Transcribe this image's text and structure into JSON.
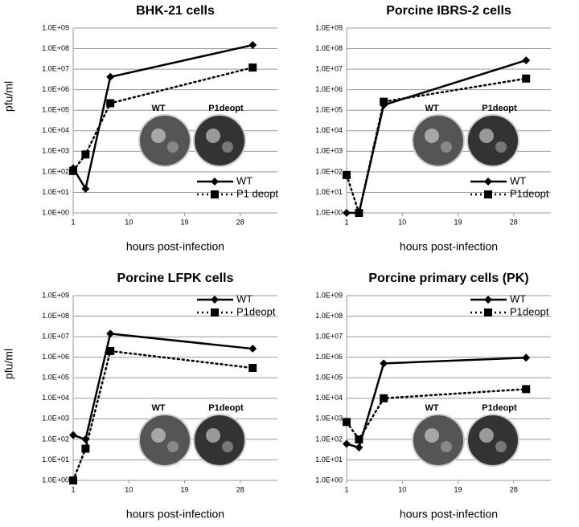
{
  "chart_data": [
    {
      "type": "line",
      "title": "BHK-21 cells",
      "ylabel": "pfu/ml",
      "xlabel": "hours post-infection",
      "log_y": true,
      "legend": "lower right",
      "inset_labels": [
        "WT",
        "P1deopt"
      ],
      "xlim": [
        1,
        34
      ],
      "xticks": [
        1,
        10,
        19,
        28
      ],
      "ylim": [
        1,
        1000000000
      ],
      "yticks": [
        {
          "value": 1,
          "label": "1.0E+00"
        },
        {
          "value": 10,
          "label": "1.0E+01"
        },
        {
          "value": 100,
          "label": "1.0E+02"
        },
        {
          "value": 1000,
          "label": "1.0E+03"
        },
        {
          "value": 10000,
          "label": "1.0E+04"
        },
        {
          "value": 100000,
          "label": "1.0E+05"
        },
        {
          "value": 1000000,
          "label": "1.0E+06"
        },
        {
          "value": 10000000,
          "label": "1.0E+07"
        },
        {
          "value": 100000000,
          "label": "1.0E+08"
        },
        {
          "value": 1000000000,
          "label": "1.0E+09"
        }
      ],
      "x": [
        1,
        3,
        7,
        30
      ],
      "series": [
        {
          "name": "WT",
          "color": "#000000",
          "dash": false,
          "marker": "diamond",
          "values": [
            150,
            15,
            4200000,
            150000000
          ]
        },
        {
          "name": "P1 deopt",
          "color": "#000000",
          "dash": true,
          "marker": "square",
          "values": [
            110,
            700,
            220000,
            12000000
          ]
        }
      ]
    },
    {
      "type": "line",
      "title": "Porcine IBRS-2 cells",
      "xlabel": "hours post-infection",
      "log_y": true,
      "legend": "lower right",
      "inset_labels": [
        "WT",
        "P1deopt"
      ],
      "xlim": [
        1,
        34
      ],
      "xticks": [
        1,
        10,
        19,
        28
      ],
      "ylim": [
        1,
        1000000000
      ],
      "yticks": [
        {
          "value": 1,
          "label": "1.0E+00"
        },
        {
          "value": 10,
          "label": "1.0E+01"
        },
        {
          "value": 100,
          "label": "1.0E+02"
        },
        {
          "value": 1000,
          "label": "1.0E+03"
        },
        {
          "value": 10000,
          "label": "1.0E+04"
        },
        {
          "value": 100000,
          "label": "1.0E+05"
        },
        {
          "value": 1000000,
          "label": "1.0E+06"
        },
        {
          "value": 10000000,
          "label": "1.0E+07"
        },
        {
          "value": 100000000,
          "label": "1.0E+08"
        },
        {
          "value": 1000000000,
          "label": "1.0E+09"
        }
      ],
      "x": [
        1,
        3,
        7,
        30
      ],
      "series": [
        {
          "name": "WT",
          "color": "#000000",
          "dash": false,
          "marker": "diamond",
          "values": [
            1,
            1,
            180000,
            27000000
          ]
        },
        {
          "name": "P1deopt",
          "color": "#000000",
          "dash": true,
          "marker": "square",
          "values": [
            70,
            1,
            260000,
            3500000
          ]
        }
      ]
    },
    {
      "type": "line",
      "title": "Porcine LFPK cells",
      "ylabel": "pfu/ml",
      "xlabel": "hours post-infection",
      "log_y": true,
      "legend": "upper right",
      "inset_labels": [
        "WT",
        "P1deopt"
      ],
      "xlim": [
        1,
        34
      ],
      "xticks": [
        1,
        10,
        19,
        28
      ],
      "ylim": [
        1,
        1000000000
      ],
      "yticks": [
        {
          "value": 1,
          "label": "1.0E+00"
        },
        {
          "value": 10,
          "label": "1.0E+01"
        },
        {
          "value": 100,
          "label": "1.0E+02"
        },
        {
          "value": 1000,
          "label": "1.0E+03"
        },
        {
          "value": 10000,
          "label": "1.0E+04"
        },
        {
          "value": 100000,
          "label": "1.0E+05"
        },
        {
          "value": 1000000,
          "label": "1.0E+06"
        },
        {
          "value": 10000000,
          "label": "1.0E+07"
        },
        {
          "value": 100000000,
          "label": "1.0E+08"
        },
        {
          "value": 1000000000,
          "label": "1.0E+09"
        }
      ],
      "x": [
        1,
        3,
        7,
        30
      ],
      "series": [
        {
          "name": "WT",
          "color": "#000000",
          "dash": false,
          "marker": "diamond",
          "values": [
            160,
            100,
            14000000,
            2600000
          ]
        },
        {
          "name": "P1deopt",
          "color": "#000000",
          "dash": true,
          "marker": "square",
          "values": [
            1,
            35,
            2000000,
            300000
          ]
        }
      ]
    },
    {
      "type": "line",
      "title": "Porcine primary cells (PK)",
      "xlabel": "hours post-infection",
      "log_y": true,
      "legend": "upper right",
      "inset_labels": [
        "WT",
        "P1deopt"
      ],
      "xlim": [
        1,
        34
      ],
      "xticks": [
        1,
        10,
        19,
        28
      ],
      "ylim": [
        1,
        1000000000
      ],
      "yticks": [
        {
          "value": 1,
          "label": "1.0E+00"
        },
        {
          "value": 10,
          "label": "1.0E+01"
        },
        {
          "value": 100,
          "label": "1.0E+02"
        },
        {
          "value": 1000,
          "label": "1.0E+03"
        },
        {
          "value": 10000,
          "label": "1.0E+04"
        },
        {
          "value": 100000,
          "label": "1.0E+05"
        },
        {
          "value": 1000000,
          "label": "1.0E+06"
        },
        {
          "value": 10000000,
          "label": "1.0E+07"
        },
        {
          "value": 100000000,
          "label": "1.0E+08"
        },
        {
          "value": 1000000000,
          "label": "1.0E+09"
        }
      ],
      "x": [
        1,
        3,
        7,
        30
      ],
      "series": [
        {
          "name": "WT",
          "color": "#000000",
          "dash": false,
          "marker": "diamond",
          "values": [
            60,
            40,
            500000,
            950000
          ]
        },
        {
          "name": "P1deopt",
          "color": "#000000",
          "dash": true,
          "marker": "square",
          "values": [
            700,
            100,
            10000,
            28000
          ]
        }
      ]
    }
  ]
}
